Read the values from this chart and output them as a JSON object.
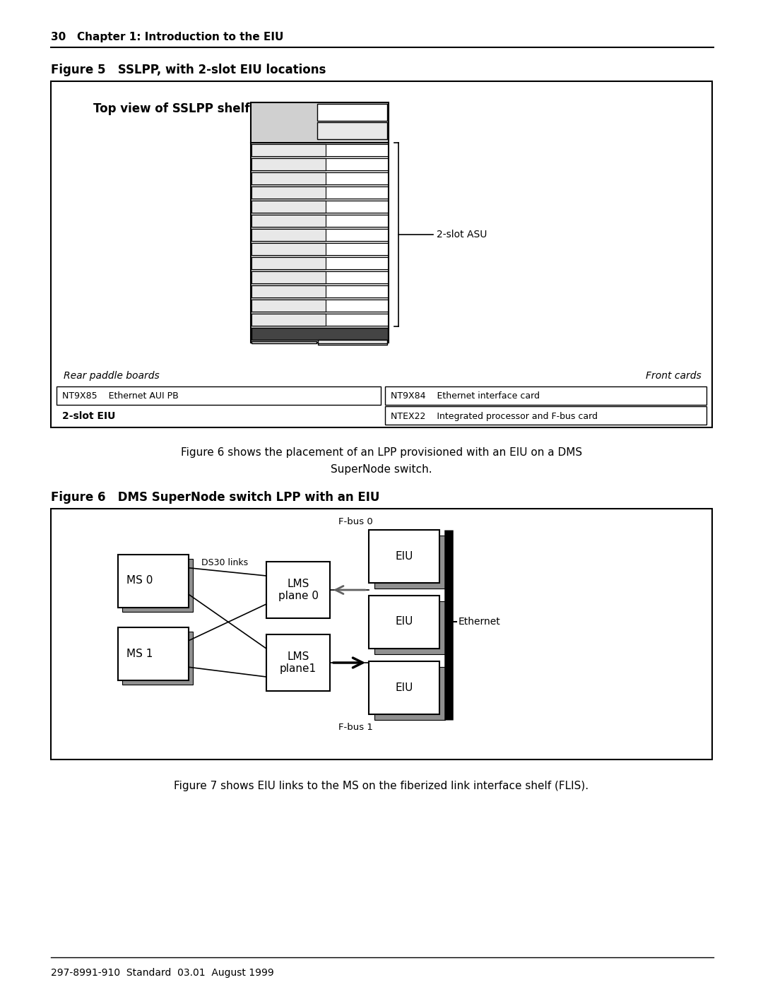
{
  "page_header": "30   Chapter 1: Introduction to the EIU",
  "fig5_title": "Figure 5   SSLPP, with 2-slot EIU locations",
  "fig5_shelf_title": "Top view of SSLPP shelf",
  "fig5_asu_label": "2-slot ASU",
  "fig5_rear_label": "Rear paddle boards",
  "fig5_front_label": "Front cards",
  "fig5_table": [
    [
      "NT9X85    Ethernet AUI PB",
      "NT9X84    Ethernet interface card"
    ],
    [
      "2-slot EIU",
      "NTEX22    Integrated processor and F-bus card"
    ]
  ],
  "between_text_line1": "Figure 6 shows the placement of an LPP provisioned with an EIU on a DMS",
  "between_text_line2": "SuperNode switch.",
  "fig6_title": "Figure 6   DMS SuperNode switch LPP with an EIU",
  "fig7_text": "Figure 7 shows EIU links to the MS on the fiberized link interface shelf (FLIS).",
  "fig6_labels": {
    "ms0": "MS 0",
    "ms1": "MS 1",
    "ds30": "DS30 links",
    "lms0": "LMS\nplane 0",
    "lms1": "LMS\nplane1",
    "fbus0": "F-bus 0",
    "fbus1": "F-bus 1",
    "eiu": "EIU",
    "ethernet": "Ethernet"
  },
  "page_footer": "297-8991-910  Standard  03.01  August 1999",
  "bg_color": "#ffffff",
  "shelf_fill": "#d0d0d0",
  "card_fill": "#e8e8e8",
  "shadow_fill": "#909090"
}
